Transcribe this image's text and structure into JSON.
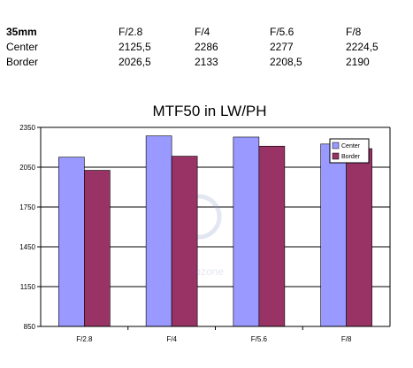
{
  "table": {
    "columns": [
      "35mm",
      "F/2.8",
      "F/4",
      "F/5.6",
      "F/8"
    ],
    "rows": [
      {
        "label": "Center",
        "values": [
          "2125,5",
          "2286",
          "2277",
          "2224,5"
        ]
      },
      {
        "label": "Border",
        "values": [
          "2026,5",
          "2133",
          "2208,5",
          "2190"
        ]
      }
    ]
  },
  "watermark": "photozone",
  "chart_data": {
    "type": "bar",
    "title": "MTF50 in LW/PH",
    "categories": [
      "F/2.8",
      "F/4",
      "F/5.6",
      "F/8"
    ],
    "series": [
      {
        "name": "Center",
        "color": "#9999ff",
        "values": [
          2125.5,
          2286,
          2277,
          2224.5
        ]
      },
      {
        "name": "Border",
        "color": "#993366",
        "values": [
          2026.5,
          2133,
          2208.5,
          2190
        ]
      }
    ],
    "ylim": [
      850,
      2350
    ],
    "yticks": [
      850,
      1150,
      1450,
      1750,
      2050,
      2350
    ],
    "grid": true,
    "legend": "right",
    "plot_background": "#ffffff"
  }
}
